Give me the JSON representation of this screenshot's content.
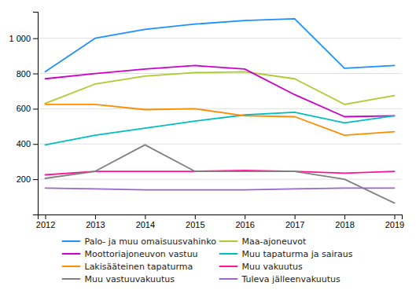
{
  "chart_data": {
    "type": "line",
    "x": [
      2012,
      2013,
      2014,
      2015,
      2016,
      2017,
      2018,
      2019
    ],
    "xlim": [
      2011.85,
      2019.15
    ],
    "xticks": [
      2012,
      2013,
      2014,
      2015,
      2016,
      2017,
      2018,
      2019
    ],
    "ylim": [
      0,
      1150
    ],
    "yticks": [
      200,
      400,
      600,
      800,
      {
        "value": 1000,
        "label": "1 000"
      }
    ],
    "grid": true,
    "legend": "bottom",
    "series": [
      {
        "name": "Palo- ja muu omaisuusvahinko",
        "color": "#1E90FF",
        "values": [
          810,
          1000,
          1050,
          1080,
          1100,
          1110,
          830,
          845
        ]
      },
      {
        "name": "Maa-ajoneuvot",
        "color": "#ADCA2E",
        "values": [
          630,
          740,
          785,
          805,
          810,
          770,
          625,
          675
        ]
      },
      {
        "name": "Moottoriajoneuvon vastuu",
        "color": "#CC00CC",
        "values": [
          770,
          800,
          825,
          845,
          825,
          680,
          555,
          560
        ]
      },
      {
        "name": "Muu tapaturma ja sairaus",
        "color": "#00BFBF",
        "values": [
          395,
          450,
          490,
          530,
          565,
          580,
          520,
          560
        ]
      },
      {
        "name": "Lakisääteinen tapaturma",
        "color": "#FF8C00",
        "values": [
          625,
          625,
          595,
          600,
          560,
          555,
          450,
          470
        ]
      },
      {
        "name": "Muu vakuutus",
        "color": "#FF1493",
        "values": [
          225,
          245,
          245,
          245,
          250,
          245,
          235,
          245
        ]
      },
      {
        "name": "Muu vastuuvakuutus",
        "color": "#808080",
        "values": [
          205,
          245,
          395,
          245,
          245,
          245,
          200,
          65
        ]
      },
      {
        "name": "Tuleva jälleenvakuutus",
        "color": "#9966CC",
        "values": [
          150,
          145,
          140,
          140,
          140,
          145,
          150,
          150
        ]
      }
    ]
  }
}
